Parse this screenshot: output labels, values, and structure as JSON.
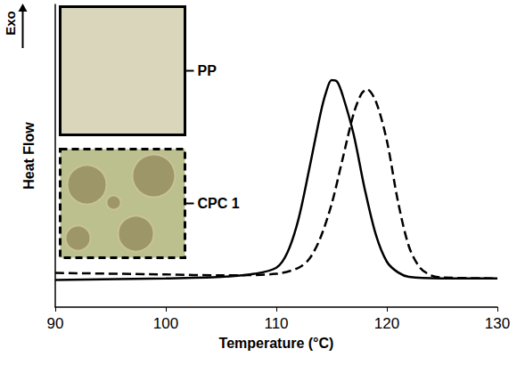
{
  "chart_data": {
    "type": "line",
    "x_label": "Temperature (°C)",
    "y_label": "Heat Flow",
    "annotation": "Exo",
    "xlim": [
      90,
      130
    ],
    "xticks": [
      90,
      100,
      110,
      120,
      130
    ],
    "ylim": [
      0,
      10
    ],
    "tick_labels": "x",
    "grid": false,
    "series": [
      {
        "name": "PP",
        "color": "#000000",
        "line_style": "solid",
        "x": [
          90,
          100,
          105,
          108,
          110,
          111,
          112,
          113,
          114,
          114.5,
          115,
          115.5,
          116,
          117,
          118,
          119,
          120,
          121,
          122,
          125,
          130
        ],
        "values": [
          0.9,
          0.95,
          1.0,
          1.1,
          1.3,
          1.8,
          2.9,
          4.6,
          6.4,
          7.1,
          7.5,
          7.45,
          7.0,
          5.7,
          3.9,
          2.4,
          1.5,
          1.15,
          1.0,
          0.95,
          0.95
        ]
      },
      {
        "name": "CPC 1",
        "color": "#000000",
        "line_style": "dashed",
        "x": [
          90,
          100,
          105,
          110,
          112,
          113,
          114,
          115,
          116,
          117,
          117.7,
          118.2,
          119,
          120,
          121,
          122,
          123,
          124,
          125,
          130
        ],
        "values": [
          1.13,
          1.08,
          1.05,
          1.1,
          1.3,
          1.6,
          2.3,
          3.4,
          4.9,
          6.4,
          7.05,
          7.2,
          6.8,
          5.5,
          3.5,
          2.0,
          1.3,
          1.05,
          0.98,
          0.95
        ]
      }
    ]
  }
}
